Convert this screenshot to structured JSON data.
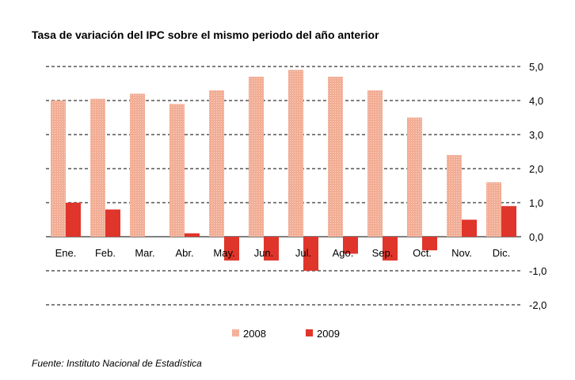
{
  "source": "Fuente: Instituto Nacional de Estadística",
  "chart_data": {
    "type": "bar",
    "title": "Tasa de variación del IPC sobre el mismo periodo del año anterior",
    "categories": [
      "Ene.",
      "Feb.",
      "Mar.",
      "Abr.",
      "May.",
      "Jun.",
      "Jul.",
      "Ago.",
      "Sep.",
      "Oct.",
      "Nov.",
      "Dic."
    ],
    "series": [
      {
        "name": "2008",
        "color": "#f4b8a2",
        "values": [
          4.0,
          4.05,
          4.2,
          3.9,
          4.3,
          4.7,
          4.9,
          4.7,
          4.3,
          3.5,
          2.4,
          1.6
        ]
      },
      {
        "name": "2009",
        "color": "#e0352b",
        "values": [
          1.0,
          0.8,
          0.0,
          0.1,
          -0.7,
          -0.7,
          -1.0,
          -0.5,
          -0.7,
          -0.4,
          0.5,
          0.9
        ]
      }
    ],
    "ylim": [
      -2.0,
      5.0
    ],
    "yticks": [
      "5,0",
      "4,0",
      "3,0",
      "2,0",
      "1,0",
      "0,0",
      "-1,0",
      "-2,0"
    ],
    "ytick_values": [
      5,
      4,
      3,
      2,
      1,
      0,
      -1,
      -2
    ],
    "axis_position": "right",
    "grid": "dashed",
    "legend_position": "bottom"
  }
}
